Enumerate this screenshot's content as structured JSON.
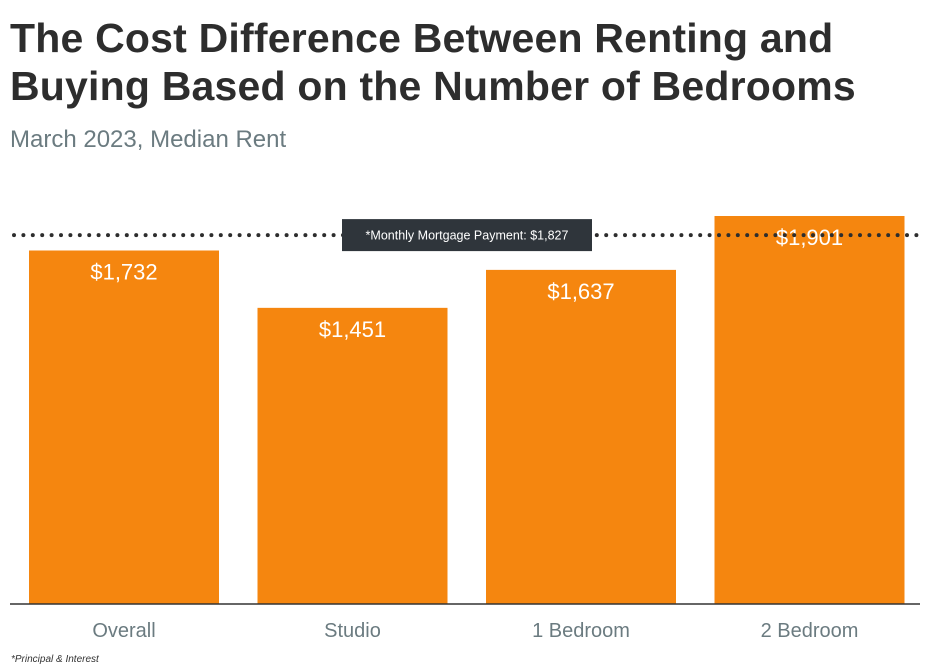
{
  "chart_data": {
    "type": "bar",
    "title": "The Cost Difference Between Renting and Buying Based on the Number of Bedrooms",
    "subtitle": "March 2023, Median Rent",
    "categories": [
      "Overall",
      "Studio",
      "1 Bedroom",
      "2 Bedroom"
    ],
    "values": [
      1732,
      1451,
      1637,
      1901
    ],
    "data_labels": [
      "$1,732",
      "$1,451",
      "$1,637",
      "$1,901"
    ],
    "ylim": [
      0,
      1901
    ],
    "grid": false,
    "reference_line": {
      "value": 1827,
      "label": "*Monthly Mortgage Payment: $1,827",
      "style": "dotted"
    },
    "footnote": "*Principal & Interest",
    "colors": {
      "bar": "#f5860f",
      "label_box": "#2f353b",
      "axis_text": "#6b7b80"
    }
  }
}
